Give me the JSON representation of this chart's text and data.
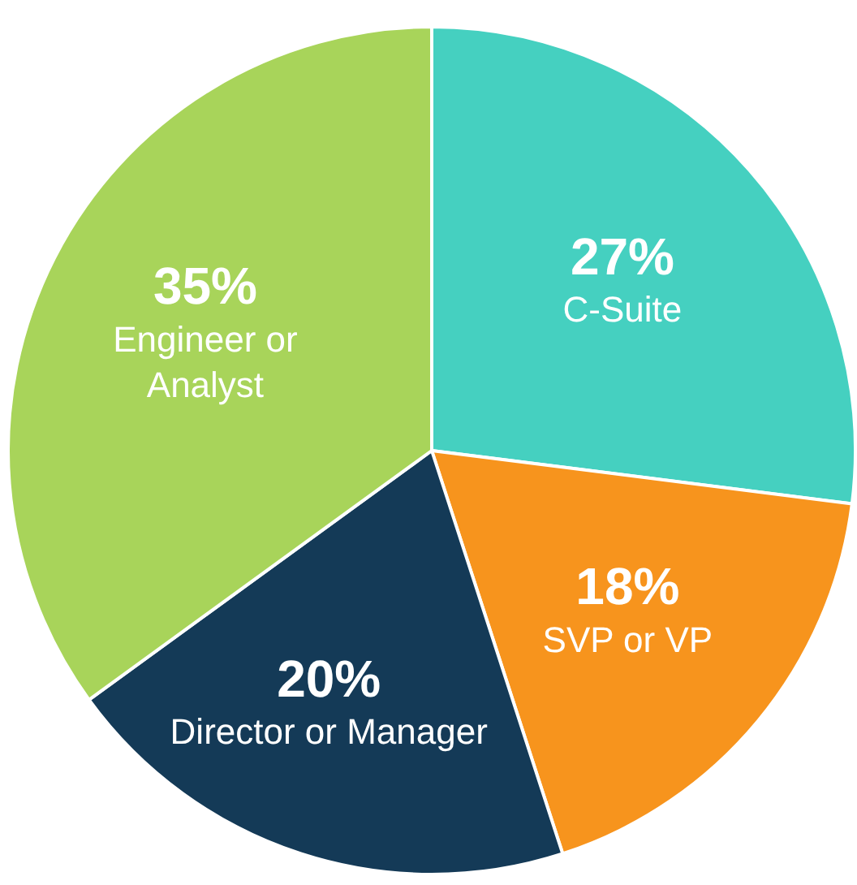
{
  "chart_data": {
    "type": "pie",
    "categories": [
      "C-Suite",
      "SVP or VP",
      "Director or Manager",
      "Engineer or Analyst"
    ],
    "values": [
      27,
      18,
      20,
      35
    ],
    "colors": [
      "#45d0c0",
      "#f7941d",
      "#143a57",
      "#a8d45a"
    ],
    "value_labels": [
      "27%",
      "18%",
      "20%",
      "35%"
    ],
    "legend": false
  }
}
